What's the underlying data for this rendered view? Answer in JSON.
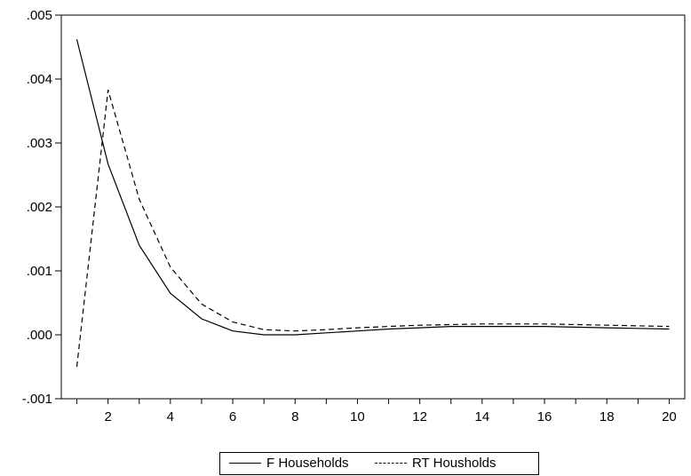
{
  "chart_data": {
    "type": "line",
    "x": [
      1,
      2,
      3,
      4,
      5,
      6,
      7,
      8,
      9,
      10,
      11,
      12,
      13,
      14,
      15,
      16,
      17,
      18,
      19,
      20
    ],
    "x_ticks": [
      "2",
      "4",
      "6",
      "8",
      "10",
      "12",
      "14",
      "16",
      "18",
      "20"
    ],
    "y_ticks": [
      ".005",
      ".004",
      ".003",
      ".002",
      ".001",
      ".000",
      "-.001"
    ],
    "ylim": [
      -0.001,
      0.005
    ],
    "xlim": [
      0.5,
      20.5
    ],
    "grid": false,
    "legend_position": "bottom",
    "series": [
      {
        "name": "F Households",
        "style": "solid",
        "values": [
          0.00462,
          0.00267,
          0.0014,
          0.00065,
          0.00025,
          6e-05,
          0.0,
          0.0,
          3e-05,
          6e-05,
          9e-05,
          0.00011,
          0.00013,
          0.00013,
          0.00013,
          0.00013,
          0.00012,
          0.00011,
          0.0001,
          9e-05
        ]
      },
      {
        "name": "RT Housholds",
        "style": "dashed",
        "values": [
          -0.0005,
          0.00383,
          0.00212,
          0.00106,
          0.00048,
          0.0002,
          8e-05,
          6e-05,
          8e-05,
          0.00011,
          0.00013,
          0.00015,
          0.00016,
          0.00017,
          0.00017,
          0.00017,
          0.00016,
          0.00015,
          0.00014,
          0.00013
        ]
      }
    ]
  },
  "legend": {
    "f_label": "F Households",
    "rt_label": "RT Housholds"
  }
}
